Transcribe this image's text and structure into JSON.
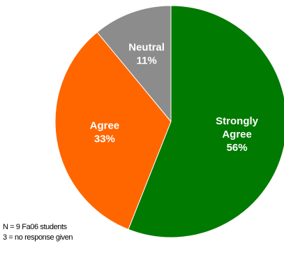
{
  "chart_data": {
    "type": "pie",
    "start_angle_deg": 0,
    "direction": "clockwise",
    "slices": [
      {
        "label_lines": [
          "Strongly",
          "Agree"
        ],
        "value": 56,
        "value_label": "56%",
        "color": "#007a00"
      },
      {
        "label_lines": [
          "Agree"
        ],
        "value": 33,
        "value_label": "33%",
        "color": "#ff6600"
      },
      {
        "label_lines": [
          "Neutral"
        ],
        "value": 11,
        "value_label": "11%",
        "color": "#8c8c8c"
      }
    ],
    "legend": "none"
  },
  "footnotes": {
    "line1": "N = 9 Fa06 students",
    "line2": "3 = no response given"
  }
}
